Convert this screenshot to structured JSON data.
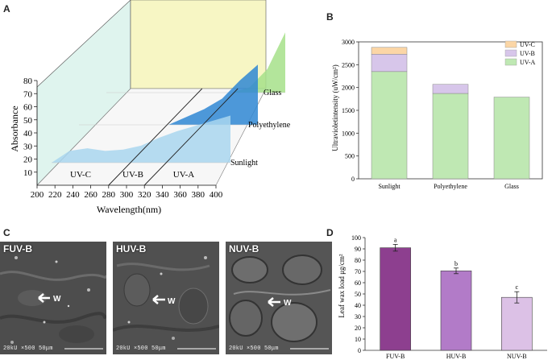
{
  "panels": {
    "a": "A",
    "b": "B",
    "c": "C",
    "d": "D"
  },
  "colors": {
    "uva": "#bfe8b3",
    "uvb": "#d7c6ea",
    "uvc": "#fbd6a6",
    "bar_fuvb": "#8d3f8f",
    "bar_huvb": "#b27bc8",
    "bar_nuvb": "#dcc1e6",
    "sunlight_fill": "#a9d6ef",
    "polyethylene_fill": "#2f87d3",
    "glass_fill": "#a6e08a",
    "back_wall": "#f7f6c4",
    "side_wall": "#dff4ee"
  },
  "sem": [
    {
      "label": "FUV-B",
      "marker": "W",
      "footer": "20kU   ×500   50μm"
    },
    {
      "label": "HUV-B",
      "marker": "W",
      "footer": "20kU   ×500   50μm"
    },
    {
      "label": "NUV-B",
      "marker": "W",
      "footer": "20kU   ×500   50μm"
    }
  ],
  "chart_data": [
    {
      "id": "A",
      "type": "area",
      "xlabel": "Wavelength(nm)",
      "ylabel": "Absorbance",
      "xlim": [
        200,
        400
      ],
      "ylim": [
        0,
        80
      ],
      "xticks": [
        200,
        220,
        240,
        260,
        280,
        300,
        320,
        340,
        360,
        380,
        400
      ],
      "yticks": [
        10,
        20,
        30,
        40,
        50,
        60,
        70,
        80
      ],
      "regions": [
        "UV-C",
        "UV-B",
        "UV-A"
      ],
      "region_bounds": [
        200,
        280,
        320,
        400
      ],
      "x": [
        200,
        220,
        240,
        260,
        280,
        300,
        320,
        340,
        360,
        380,
        400
      ],
      "series": [
        {
          "name": "Sunlight",
          "values": [
            0,
            9,
            11,
            9,
            10,
            13,
            19,
            24,
            28,
            32,
            36
          ]
        },
        {
          "name": "Polyethylene",
          "values": [
            0,
            0,
            0,
            0,
            0,
            0,
            6,
            12,
            20,
            34,
            46
          ]
        },
        {
          "name": "Glass",
          "values": [
            0,
            0,
            0,
            0,
            0,
            0,
            0,
            0,
            4,
            18,
            46
          ]
        }
      ]
    },
    {
      "id": "B",
      "type": "bar",
      "stacked": true,
      "ylabel": "Ultravioletintensity (uW/cm²)",
      "ylim": [
        0,
        3000
      ],
      "yticks": [
        0,
        500,
        1000,
        1500,
        2000,
        2500,
        3000
      ],
      "categories": [
        "Sunlight",
        "Polyethylene",
        "Glass"
      ],
      "legend": [
        "UV-C",
        "UV-B",
        "UV-A"
      ],
      "series": [
        {
          "name": "UV-A",
          "values": [
            2350,
            1870,
            1790
          ]
        },
        {
          "name": "UV-B",
          "values": [
            380,
            200,
            0
          ]
        },
        {
          "name": "UV-C",
          "values": [
            150,
            0,
            0
          ]
        }
      ]
    },
    {
      "id": "D",
      "type": "bar",
      "ylabel": "Leaf wax load μg/cm²",
      "ylim": [
        0,
        100
      ],
      "yticks": [
        0,
        10,
        20,
        30,
        40,
        50,
        60,
        70,
        80,
        90,
        100
      ],
      "categories": [
        "FUV-B",
        "HUV-B",
        "NUV-B"
      ],
      "values": [
        91,
        70.5,
        47
      ],
      "errors": [
        3,
        2.5,
        5
      ],
      "letters": [
        "a",
        "b",
        "c"
      ]
    }
  ]
}
